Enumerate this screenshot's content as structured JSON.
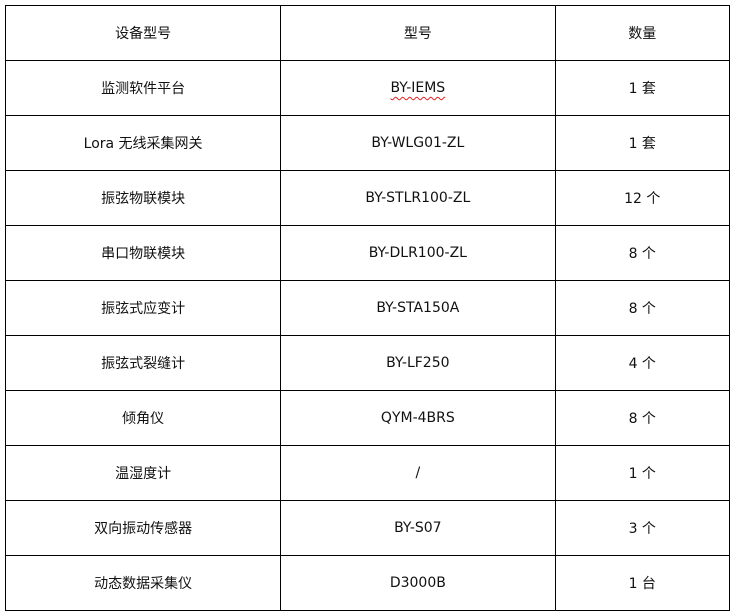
{
  "headers": [
    "设备型号",
    "型号",
    "数量"
  ],
  "rows": [
    [
      "监测软件平台",
      "BY-IEMS",
      "1 套"
    ],
    [
      "Lora 无线采集网关",
      "BY-WLG01-ZL",
      "1 套"
    ],
    [
      "振弦物联模块",
      "BY-STLR100-ZL",
      "12 个"
    ],
    [
      "串口物联模块",
      "BY-DLR100-ZL",
      "8 个"
    ],
    [
      "振弦式应变计",
      "BY-STA150A",
      "8 个"
    ],
    [
      "振弦式裂缝计",
      "BY-LF250",
      "4 个"
    ],
    [
      "倾角仪",
      "QYM-4BRS",
      "8 个"
    ],
    [
      "温湿度计",
      "/",
      "1 个"
    ],
    [
      "双向振动传感器",
      "BY-S07",
      "3 个"
    ],
    [
      "动态数据采集仪",
      "D3000B",
      "1 台"
    ]
  ]
}
